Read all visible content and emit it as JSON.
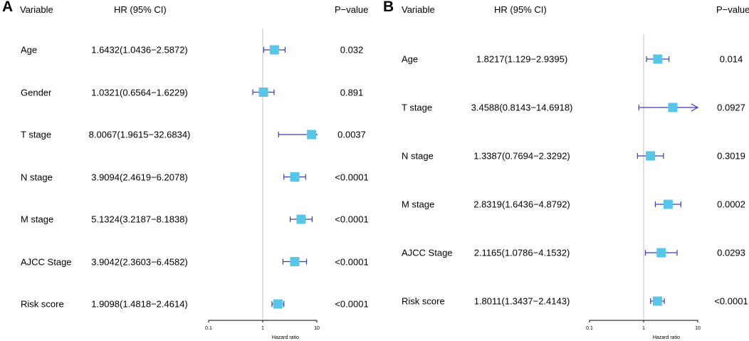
{
  "chart_data": [
    {
      "panel": "A",
      "type": "forest",
      "headers": {
        "variable": "Variable",
        "hr": "HR (95% CI)",
        "pvalue": "P−value"
      },
      "xlabel": "Hazard ratio",
      "x_ticks": [
        {
          "value": 0.1,
          "label": "0.1"
        },
        {
          "value": 1,
          "label": "1"
        },
        {
          "value": 10,
          "label": "10"
        }
      ],
      "x_scale": "log",
      "xlim": [
        0.1,
        10
      ],
      "reference_line": 1,
      "rows": [
        {
          "variable": "Age",
          "hr_text": "1.6432(1.0436−2.5872)",
          "hr": 1.6432,
          "lower": 1.0436,
          "upper": 2.5872,
          "p": "0.032"
        },
        {
          "variable": "Gender",
          "hr_text": "1.0321(0.6564−1.6229)",
          "hr": 1.0321,
          "lower": 0.6564,
          "upper": 1.6229,
          "p": "0.891"
        },
        {
          "variable": "T stage",
          "hr_text": "8.0067(1.9615−32.6834)",
          "hr": 8.0067,
          "lower": 1.9615,
          "upper": 32.6834,
          "p": "0.0037"
        },
        {
          "variable": "N stage",
          "hr_text": "3.9094(2.4619−6.2078)",
          "hr": 3.9094,
          "lower": 2.4619,
          "upper": 6.2078,
          "p": "<0.0001"
        },
        {
          "variable": "M stage",
          "hr_text": "5.1324(3.2187−8.1838)",
          "hr": 5.1324,
          "lower": 3.2187,
          "upper": 8.1838,
          "p": "<0.0001"
        },
        {
          "variable": "AJCC Stage",
          "hr_text": "3.9042(2.3603−6.4582)",
          "hr": 3.9042,
          "lower": 2.3603,
          "upper": 6.4582,
          "p": "<0.0001"
        },
        {
          "variable": "Risk score",
          "hr_text": "1.9098(1.4818−2.4614)",
          "hr": 1.9098,
          "lower": 1.4818,
          "upper": 2.4614,
          "p": "<0.0001"
        }
      ]
    },
    {
      "panel": "B",
      "type": "forest",
      "headers": {
        "variable": "Variable",
        "hr": "HR (95% CI)",
        "pvalue": "P−value"
      },
      "xlabel": "Hazard ratio",
      "x_ticks": [
        {
          "value": 0.1,
          "label": "0.1"
        },
        {
          "value": 1,
          "label": "1"
        },
        {
          "value": 10,
          "label": "10"
        }
      ],
      "x_scale": "log",
      "xlim": [
        0.1,
        10
      ],
      "reference_line": 1,
      "rows": [
        {
          "variable": "Age",
          "hr_text": "1.8217(1.129−2.9395)",
          "hr": 1.8217,
          "lower": 1.129,
          "upper": 2.9395,
          "p": "0.014"
        },
        {
          "variable": "T stage",
          "hr_text": "3.4588(0.8143−14.6918)",
          "hr": 3.4588,
          "lower": 0.8143,
          "upper": 14.6918,
          "p": "0.0927"
        },
        {
          "variable": "N stage",
          "hr_text": "1.3387(0.7694−2.3292)",
          "hr": 1.3387,
          "lower": 0.7694,
          "upper": 2.3292,
          "p": "0.3019"
        },
        {
          "variable": "M stage",
          "hr_text": "2.8319(1.6436−4.8792)",
          "hr": 2.8319,
          "lower": 1.6436,
          "upper": 4.8792,
          "p": "0.0002"
        },
        {
          "variable": "AJCC Stage",
          "hr_text": "2.1165(1.0786−4.1532)",
          "hr": 2.1165,
          "lower": 1.0786,
          "upper": 4.1532,
          "p": "0.0293"
        },
        {
          "variable": "Risk score",
          "hr_text": "1.8011(1.3437−2.4143)",
          "hr": 1.8011,
          "lower": 1.3437,
          "upper": 2.4143,
          "p": "<0.0001"
        }
      ]
    }
  ],
  "style": {
    "box_color": "#56c7e8",
    "ci_color": "#3b3bb5",
    "ref_line_color": "#cccccc"
  }
}
